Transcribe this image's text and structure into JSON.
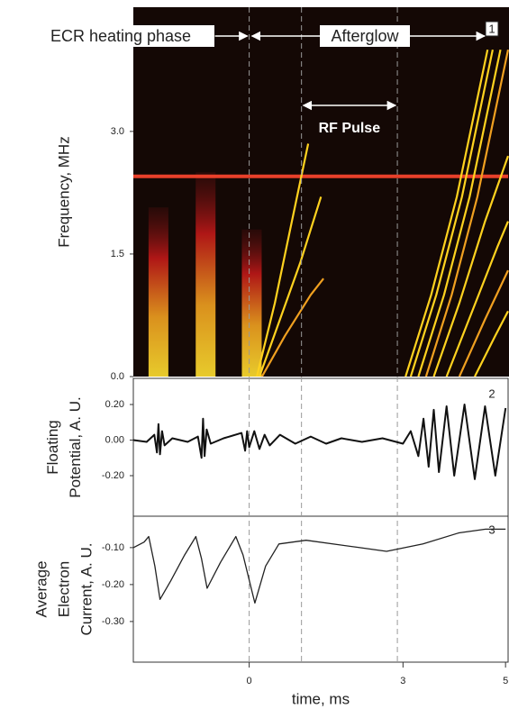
{
  "chart_data": [
    {
      "type": "spectrogram",
      "ylabel": "Frequency, MHz",
      "ylim": [
        0,
        4.52
      ],
      "yticks": [
        {
          "value": 0,
          "label": "0.0"
        },
        {
          "value": 1.5,
          "label": "1.5"
        },
        {
          "value": 3.0,
          "label": "3.0"
        }
      ],
      "markers": [
        0,
        1.02,
        2.89
      ],
      "annotations": [
        "ECR heating phase",
        "Afterglow",
        "RF Pulse"
      ],
      "panel_label": "1",
      "bursts": {
        "x": [
          -1.77,
          -0.85,
          0.05
        ],
        "values": [
          2.07,
          2.5,
          1.8
        ]
      },
      "lines": [
        {
          "color": "#e8402a",
          "x": [
            -2.26,
            5.05
          ],
          "values": [
            2.45,
            2.45
          ]
        },
        {
          "color": "#ffd21f",
          "x": [
            0.15,
            0.5,
            0.8,
            1.15
          ],
          "values": [
            0,
            0.9,
            1.8,
            2.85
          ]
        },
        {
          "color": "#ffd21f",
          "x": [
            0.2,
            0.6,
            1.0,
            1.4
          ],
          "values": [
            0,
            0.7,
            1.4,
            2.2
          ]
        },
        {
          "color": "#f0a020",
          "x": [
            0.25,
            0.7,
            1.2,
            1.45
          ],
          "values": [
            0,
            0.5,
            1.0,
            1.2
          ]
        },
        {
          "color": "#ffd21f",
          "x": [
            3.05,
            3.55,
            4.05,
            4.65
          ],
          "values": [
            0,
            1.0,
            2.2,
            4.0
          ]
        },
        {
          "color": "#ffd21f",
          "x": [
            3.15,
            3.65,
            4.15,
            4.75
          ],
          "values": [
            0,
            1.0,
            2.2,
            4.0
          ]
        },
        {
          "color": "#ffd21f",
          "x": [
            3.3,
            3.8,
            4.3,
            4.9
          ],
          "values": [
            0,
            1.0,
            2.2,
            4.0
          ]
        },
        {
          "color": "#f0a020",
          "x": [
            3.45,
            3.95,
            4.45,
            5.05
          ],
          "values": [
            0,
            1.0,
            2.2,
            4.0
          ]
        },
        {
          "color": "#ffd21f",
          "x": [
            3.6,
            4.1,
            4.6,
            5.05
          ],
          "values": [
            0,
            0.9,
            1.9,
            2.7
          ]
        },
        {
          "color": "#ffd21f",
          "x": [
            3.85,
            4.35,
            4.85,
            5.05
          ],
          "values": [
            0,
            0.8,
            1.6,
            1.9
          ]
        },
        {
          "color": "#f0a020",
          "x": [
            4.1,
            4.6,
            5.05
          ],
          "values": [
            0,
            0.7,
            1.3
          ]
        },
        {
          "color": "#ffd21f",
          "x": [
            4.4,
            4.8,
            5.05
          ],
          "values": [
            0,
            0.5,
            0.8
          ]
        }
      ]
    },
    {
      "type": "line",
      "ylabel": [
        "Floating",
        "Potential, A. U."
      ],
      "ylim": [
        -0.428,
        0.347
      ],
      "yticks": [
        {
          "value": 0.2,
          "label": "0.20"
        },
        {
          "value": 0,
          "label": "0.00"
        },
        {
          "value": -0.2,
          "label": "-0.20"
        }
      ],
      "panel_label": "2",
      "color": "#111111",
      "x": [
        -2.26,
        -2.0,
        -1.85,
        -1.8,
        -1.77,
        -1.74,
        -1.7,
        -1.65,
        -1.5,
        -1.2,
        -1.0,
        -0.93,
        -0.9,
        -0.87,
        -0.83,
        -0.75,
        -0.5,
        -0.15,
        -0.08,
        -0.04,
        0.0,
        0.1,
        0.2,
        0.3,
        0.4,
        0.6,
        0.9,
        1.2,
        1.5,
        1.8,
        2.2,
        2.6,
        3.0,
        3.15,
        3.3,
        3.4,
        3.5,
        3.6,
        3.7,
        3.85,
        4.0,
        4.2,
        4.4,
        4.6,
        4.8,
        5.0
      ],
      "values": [
        0.0,
        -0.01,
        0.03,
        -0.07,
        0.09,
        -0.08,
        0.05,
        -0.03,
        0.01,
        -0.01,
        0.02,
        -0.1,
        0.12,
        -0.09,
        0.06,
        -0.02,
        0.01,
        0.04,
        -0.06,
        0.05,
        -0.04,
        0.05,
        -0.05,
        0.03,
        -0.03,
        0.03,
        -0.02,
        0.02,
        -0.02,
        0.01,
        -0.01,
        0.01,
        -0.02,
        0.05,
        -0.09,
        0.12,
        -0.15,
        0.17,
        -0.18,
        0.19,
        -0.2,
        0.2,
        -0.22,
        0.19,
        -0.2,
        0.18
      ]
    },
    {
      "type": "line",
      "ylabel": [
        "Average",
        "Electron",
        "Current, A. U."
      ],
      "ylim": [
        -0.41,
        -0.015
      ],
      "yticks": [
        {
          "value": -0.1,
          "label": "-0.10"
        },
        {
          "value": -0.2,
          "label": "-0.20"
        },
        {
          "value": -0.3,
          "label": "-0.30"
        }
      ],
      "panel_label": "3",
      "color": "#222222",
      "x": [
        -2.26,
        -2.05,
        -1.96,
        -1.84,
        -1.74,
        -1.53,
        -1.26,
        -1.04,
        -0.93,
        -0.82,
        -0.56,
        -0.26,
        -0.12,
        0.11,
        0.32,
        0.58,
        1.11,
        2.16,
        2.68,
        3.39,
        4.09,
        4.61,
        5.0
      ],
      "values": [
        -0.1,
        -0.085,
        -0.07,
        -0.15,
        -0.24,
        -0.19,
        -0.12,
        -0.07,
        -0.13,
        -0.21,
        -0.14,
        -0.07,
        -0.12,
        -0.25,
        -0.15,
        -0.09,
        -0.08,
        -0.1,
        -0.11,
        -0.09,
        -0.06,
        -0.05,
        -0.05
      ],
      "xlim": [
        -2.26,
        5.05
      ],
      "xticks": [
        0,
        3,
        5
      ],
      "xlabel": "time, ms"
    }
  ]
}
